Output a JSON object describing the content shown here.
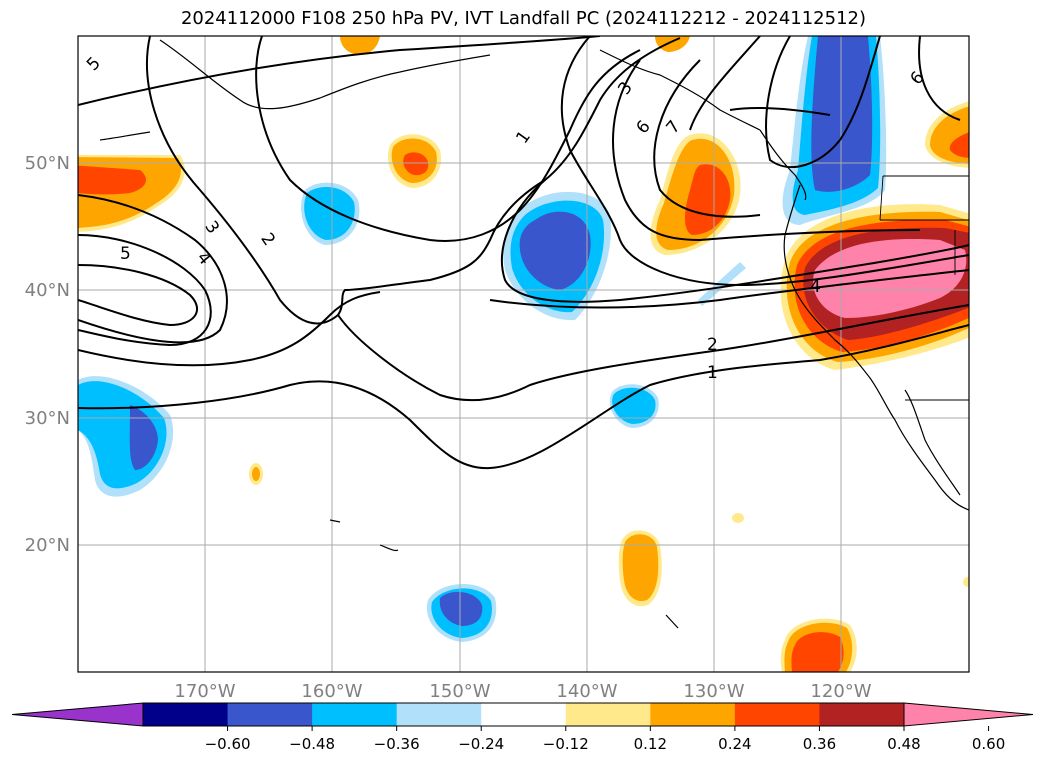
{
  "title": "2024112000 F108 250 hPa PV, IVT Landfall PC (2024112212 - 2024112512)",
  "map": {
    "lon_labels": [
      "170°W",
      "160°W",
      "150°W",
      "140°W",
      "130°W",
      "120°W"
    ],
    "lat_labels": [
      "50°N",
      "40°N",
      "30°N",
      "20°N"
    ],
    "contour_labels": [
      "5",
      "3",
      "2",
      "4",
      "5",
      "1",
      "3",
      "6",
      "7",
      "2",
      "1",
      "4",
      "6"
    ]
  },
  "colorbar": {
    "ticks": [
      "−0.60",
      "−0.48",
      "−0.36",
      "−0.24",
      "−0.12",
      "0.12",
      "0.24",
      "0.36",
      "0.48",
      "0.60"
    ],
    "colors": [
      "#9933cc",
      "#00008b",
      "#3a56cc",
      "#00bfff",
      "#b0e0fa",
      "#ffffff",
      "#ffe98a",
      "#ffa500",
      "#ff4500",
      "#b22222",
      "#ff82ab"
    ]
  },
  "colors": {
    "pos_strong": "#ff82ab",
    "pos_maroon": "#b22222",
    "pos_red": "#ff4500",
    "pos_orange": "#ffa500",
    "pos_yellow": "#ffe98a",
    "neg_light": "#b0e0fa",
    "neg_cyan": "#00bfff",
    "neg_blue": "#3a56cc"
  }
}
